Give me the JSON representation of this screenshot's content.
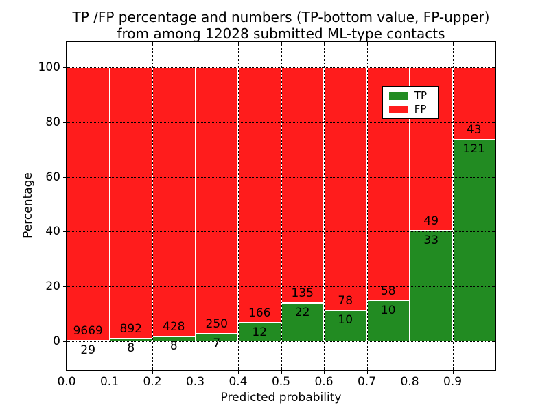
{
  "chart_data": {
    "type": "bar",
    "stacked": true,
    "normalized_to_percent": true,
    "title": "TP /FP percentage and numbers (TP-bottom value, FP-upper)\nfrom among 12028 submitted ML-type contacts",
    "title_line1": "TP /FP percentage and numbers (TP-bottom value, FP-upper)",
    "title_line2": "from among 12028 submitted ML-type contacts",
    "xlabel": "Predicted probability",
    "ylabel": "Percentage",
    "total_contacts": 12028,
    "bin_edges": [
      0.0,
      0.1,
      0.2,
      0.3,
      0.4,
      0.5,
      0.6,
      0.7,
      0.8,
      0.9,
      1.0
    ],
    "xtick_labels": [
      "0.0",
      "0.1",
      "0.2",
      "0.3",
      "0.4",
      "0.5",
      "0.6",
      "0.7",
      "0.8",
      "0.9"
    ],
    "ytick_values": [
      0,
      20,
      40,
      60,
      80,
      100
    ],
    "xlim": [
      0.0,
      1.0
    ],
    "ylim": [
      -10.5,
      109.3
    ],
    "grid": {
      "style": "dotted",
      "color": "#000000"
    },
    "bar_edge_color": "#ffffff",
    "series": [
      {
        "name": "TP",
        "position": "bottom",
        "color": "#228b22",
        "counts": [
          29,
          8,
          8,
          7,
          12,
          22,
          10,
          10,
          33,
          121
        ]
      },
      {
        "name": "FP",
        "position": "top",
        "color": "#ff1c1c",
        "counts": [
          9669,
          892,
          428,
          250,
          166,
          135,
          78,
          58,
          49,
          43
        ]
      }
    ],
    "tp_percent_per_bin": [
      0.3,
      0.89,
      1.83,
      2.72,
      6.74,
      14.01,
      11.36,
      14.71,
      40.24,
      73.78
    ],
    "legend": {
      "position": "upper right",
      "entries": [
        "TP",
        "FP"
      ]
    }
  }
}
